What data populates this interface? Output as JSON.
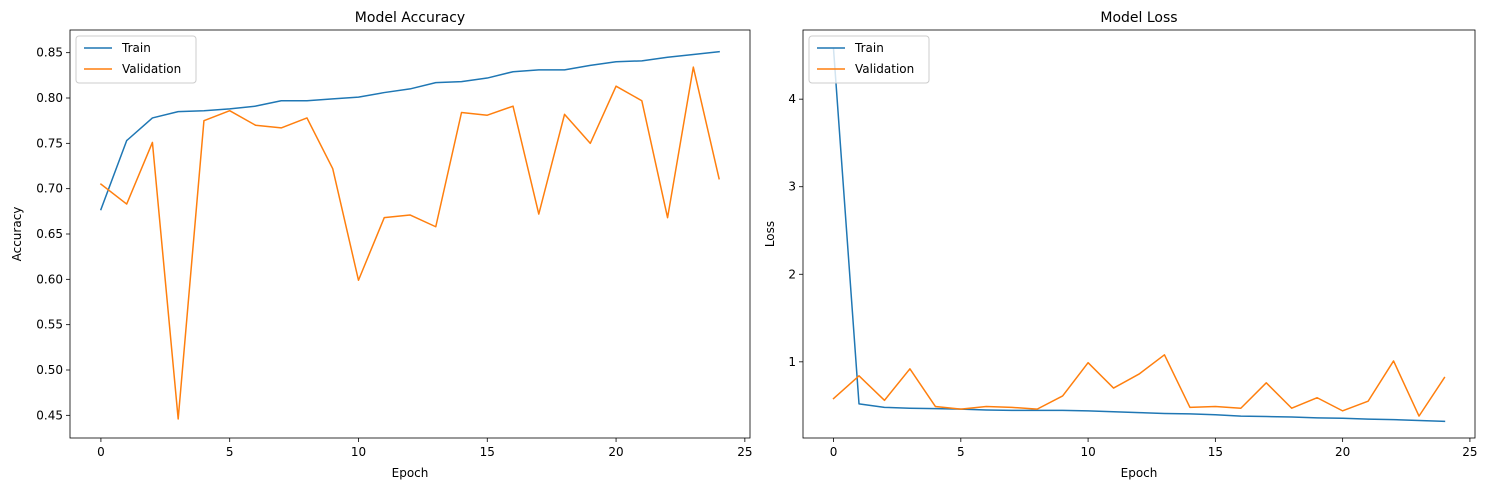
{
  "colors": {
    "train": "#1f77b4",
    "validation": "#ff7f0e"
  },
  "chart_data": [
    {
      "type": "line",
      "title": "Model Accuracy",
      "xlabel": "Epoch",
      "ylabel": "Accuracy",
      "xlim": [
        -1.2,
        25.2
      ],
      "ylim": [
        0.425,
        0.875
      ],
      "xticks": [
        0,
        5,
        10,
        15,
        20,
        25
      ],
      "yticks": [
        0.45,
        0.5,
        0.55,
        0.6,
        0.65,
        0.7,
        0.75,
        0.8,
        0.85
      ],
      "ytick_format": 2,
      "legend_loc": "upper left",
      "grid": false,
      "x": [
        0,
        1,
        2,
        3,
        4,
        5,
        6,
        7,
        8,
        9,
        10,
        11,
        12,
        13,
        14,
        15,
        16,
        17,
        18,
        19,
        20,
        21,
        22,
        23,
        24
      ],
      "series": [
        {
          "name": "Train",
          "color": "#1f77b4",
          "values": [
            0.677,
            0.753,
            0.778,
            0.785,
            0.786,
            0.788,
            0.791,
            0.797,
            0.797,
            0.799,
            0.801,
            0.806,
            0.81,
            0.817,
            0.818,
            0.822,
            0.829,
            0.831,
            0.831,
            0.836,
            0.84,
            0.841,
            0.845,
            0.848,
            0.851
          ]
        },
        {
          "name": "Validation",
          "color": "#ff7f0e",
          "values": [
            0.705,
            0.683,
            0.751,
            0.446,
            0.775,
            0.786,
            0.77,
            0.767,
            0.778,
            0.722,
            0.599,
            0.668,
            0.671,
            0.658,
            0.784,
            0.781,
            0.791,
            0.672,
            0.782,
            0.75,
            0.813,
            0.797,
            0.668,
            0.834,
            0.711
          ]
        }
      ]
    },
    {
      "type": "line",
      "title": "Model Loss",
      "xlabel": "Epoch",
      "ylabel": "Loss",
      "xlim": [
        -1.2,
        25.2
      ],
      "ylim": [
        0.13,
        4.79
      ],
      "xticks": [
        0,
        5,
        10,
        15,
        20,
        25
      ],
      "yticks": [
        1,
        2,
        3,
        4
      ],
      "ytick_format": 0,
      "legend_loc": "upper left",
      "grid": false,
      "x": [
        0,
        1,
        2,
        3,
        4,
        5,
        6,
        7,
        8,
        9,
        10,
        11,
        12,
        13,
        14,
        15,
        16,
        17,
        18,
        19,
        20,
        21,
        22,
        23,
        24
      ],
      "series": [
        {
          "name": "Train",
          "color": "#1f77b4",
          "values": [
            4.57,
            0.52,
            0.48,
            0.47,
            0.465,
            0.46,
            0.45,
            0.445,
            0.445,
            0.445,
            0.44,
            0.43,
            0.42,
            0.41,
            0.405,
            0.395,
            0.38,
            0.375,
            0.37,
            0.36,
            0.355,
            0.345,
            0.34,
            0.33,
            0.32
          ]
        },
        {
          "name": "Validation",
          "color": "#ff7f0e",
          "values": [
            0.58,
            0.84,
            0.56,
            0.92,
            0.49,
            0.46,
            0.49,
            0.48,
            0.46,
            0.61,
            0.99,
            0.7,
            0.86,
            1.08,
            0.48,
            0.49,
            0.47,
            0.76,
            0.47,
            0.59,
            0.44,
            0.55,
            1.01,
            0.38,
            0.82
          ]
        }
      ]
    }
  ]
}
